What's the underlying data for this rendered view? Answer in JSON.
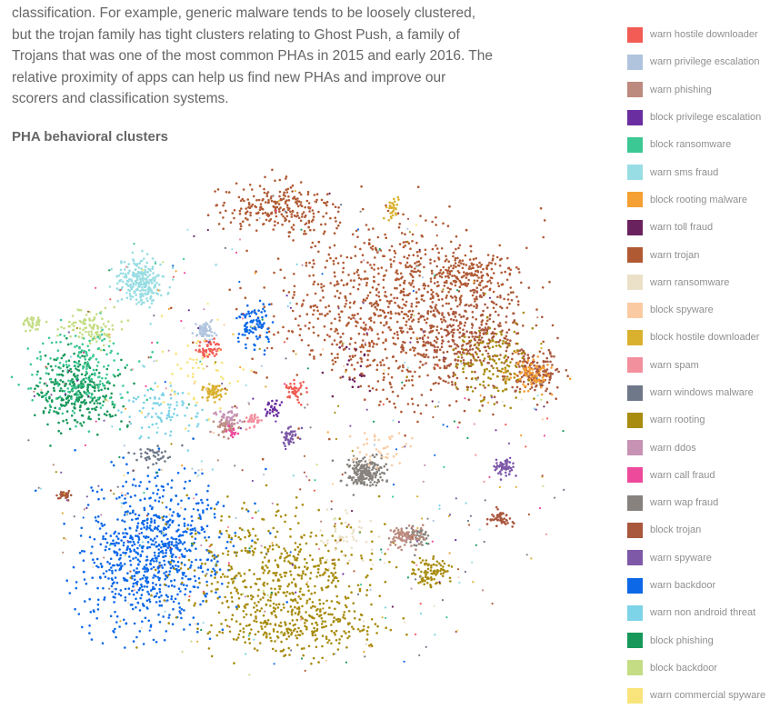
{
  "article": {
    "paragraph": "classification. For example, generic malware tends to be loosely clustered, but the trojan family has tight clusters relating to Ghost Push, a family of Trojans that was one of the most common PHAs in 2015 and early 2016. The relative proximity of apps can help us find new PHAs and improve our scorers and classification systems."
  },
  "chart_data": {
    "type": "scatter",
    "title": "PHA behavioral clusters",
    "xlabel": "",
    "ylabel": "",
    "axes_visible": false,
    "grid": false,
    "legend_placement": "right",
    "series": [
      {
        "name": "warn hostile downloader",
        "color": "#f25c54"
      },
      {
        "name": "warn privilege escalation",
        "color": "#b0c4de"
      },
      {
        "name": "warn phishing",
        "color": "#bc8a7e"
      },
      {
        "name": "block privilege escalation",
        "color": "#6a2ea0"
      },
      {
        "name": "block ransomware",
        "color": "#3cc894"
      },
      {
        "name": "warn sms fraud",
        "color": "#98dde3"
      },
      {
        "name": "block rooting malware",
        "color": "#f5a033"
      },
      {
        "name": "warn toll fraud",
        "color": "#6a225e"
      },
      {
        "name": "warn trojan",
        "color": "#b05a34"
      },
      {
        "name": "warn ransomware",
        "color": "#ebe0c8"
      },
      {
        "name": "block spyware",
        "color": "#facba2"
      },
      {
        "name": "block hostile downloader",
        "color": "#dab12f"
      },
      {
        "name": "warn spam",
        "color": "#f3909e"
      },
      {
        "name": "warn windows malware",
        "color": "#6e7889"
      },
      {
        "name": "warn rooting",
        "color": "#a88c0f"
      },
      {
        "name": "warn ddos",
        "color": "#c793b5"
      },
      {
        "name": "warn call fraud",
        "color": "#ee4a9c"
      },
      {
        "name": "warn wap fraud",
        "color": "#87827d"
      },
      {
        "name": "block trojan",
        "color": "#a9573d"
      },
      {
        "name": "warn spyware",
        "color": "#7e59a8"
      },
      {
        "name": "warn backdoor",
        "color": "#0d68e8"
      },
      {
        "name": "warn non android threat",
        "color": "#7dd3e7"
      },
      {
        "name": "block phishing",
        "color": "#17985a"
      },
      {
        "name": "block backdoor",
        "color": "#c4dd84"
      },
      {
        "name": "warn commercial spyware",
        "color": "#f8e47a"
      }
    ]
  }
}
